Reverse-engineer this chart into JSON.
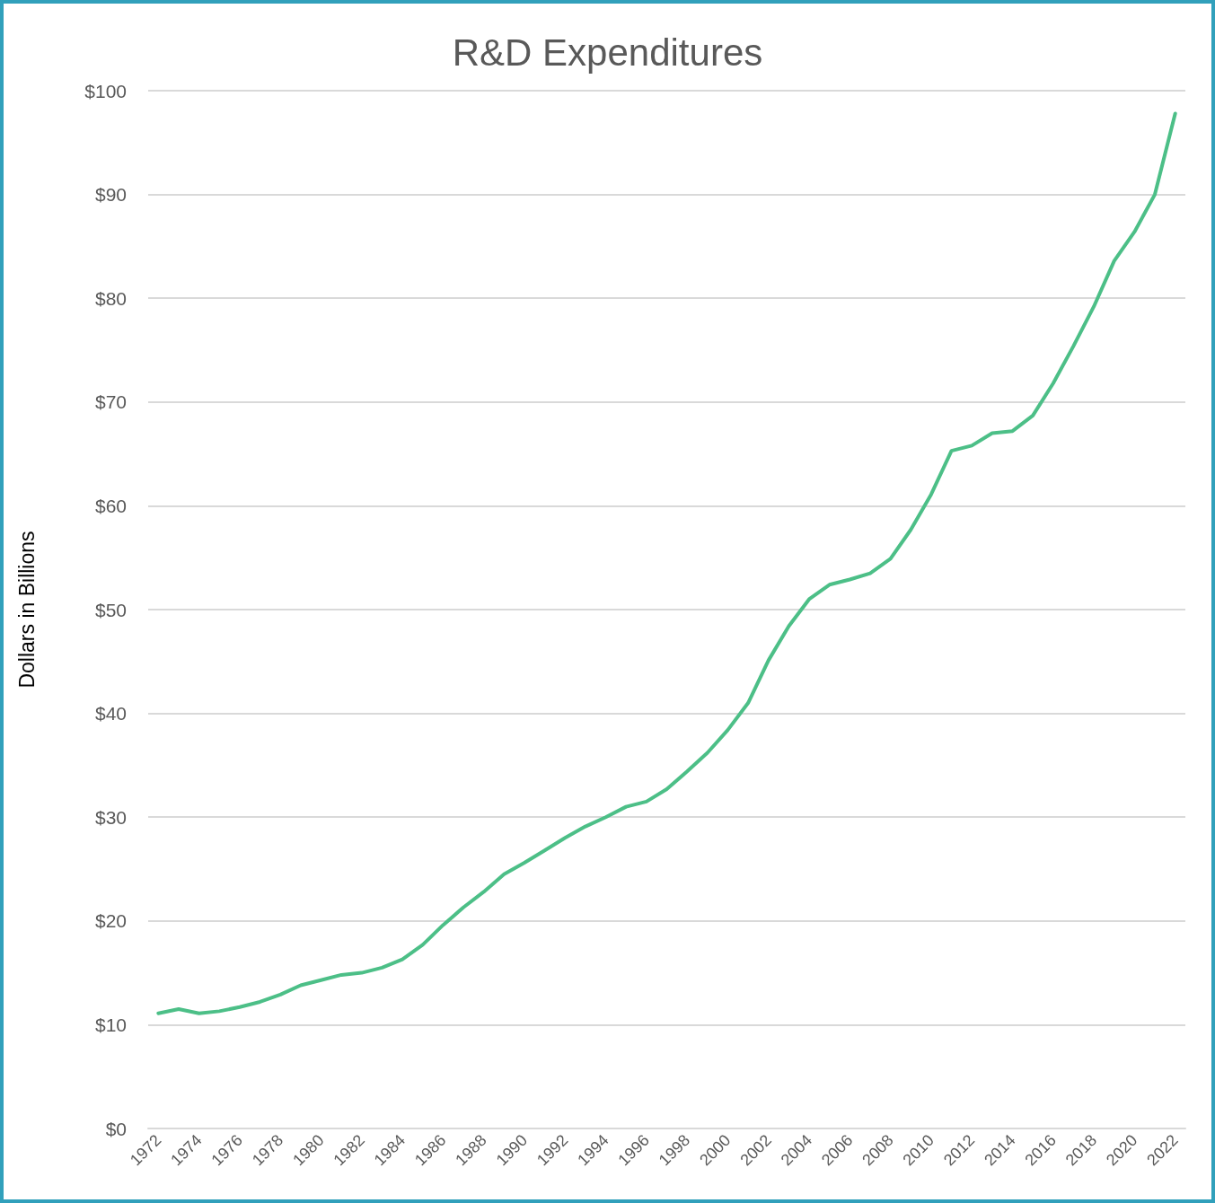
{
  "chart_data": {
    "type": "line",
    "title": "R&D Expenditures",
    "ylabel": "Dollars in Billions",
    "categories": [
      "1972",
      null,
      "1974",
      null,
      "1976",
      null,
      "1978",
      null,
      "1980",
      null,
      "1982",
      null,
      "1984",
      null,
      "1986",
      null,
      "1988",
      null,
      "1990",
      null,
      "1992",
      null,
      "1994",
      null,
      "1996",
      null,
      "1998",
      null,
      "2000",
      null,
      "2002",
      null,
      "2004",
      null,
      "2006",
      null,
      "2008",
      null,
      "2010",
      null,
      "2012",
      null,
      "2014",
      null,
      "2016",
      null,
      "2018",
      null,
      "2020",
      null,
      "2022"
    ],
    "values": [
      11.1,
      11.5,
      11.1,
      11.3,
      11.7,
      12.2,
      12.9,
      13.8,
      14.3,
      14.8,
      15.0,
      15.5,
      16.3,
      17.7,
      19.6,
      21.3,
      22.8,
      24.5,
      25.6,
      26.8,
      28.0,
      29.1,
      30.0,
      31.0,
      31.5,
      32.7,
      34.4,
      36.2,
      38.4,
      41.0,
      45.1,
      48.4,
      51.0,
      52.4,
      52.9,
      53.5,
      54.9,
      57.7,
      61.1,
      65.3,
      65.8,
      67.0,
      67.2,
      68.7,
      71.8,
      75.4,
      79.2,
      83.6,
      86.4,
      90.0,
      97.8
    ],
    "color": "#4cbf87",
    "ylim": [
      0,
      100
    ],
    "yticks": [
      {
        "value": 0,
        "label": "$0"
      },
      {
        "value": 10,
        "label": "$10"
      },
      {
        "value": 20,
        "label": "$20"
      },
      {
        "value": 30,
        "label": "$30"
      },
      {
        "value": 40,
        "label": "$40"
      },
      {
        "value": 50,
        "label": "$50"
      },
      {
        "value": 60,
        "label": "$60"
      },
      {
        "value": 70,
        "label": "$70"
      },
      {
        "value": 80,
        "label": "$80"
      },
      {
        "value": 90,
        "label": "$90"
      },
      {
        "value": 100,
        "label": "$100"
      }
    ],
    "grid": "y",
    "marker": "none",
    "line_style": "solid"
  }
}
